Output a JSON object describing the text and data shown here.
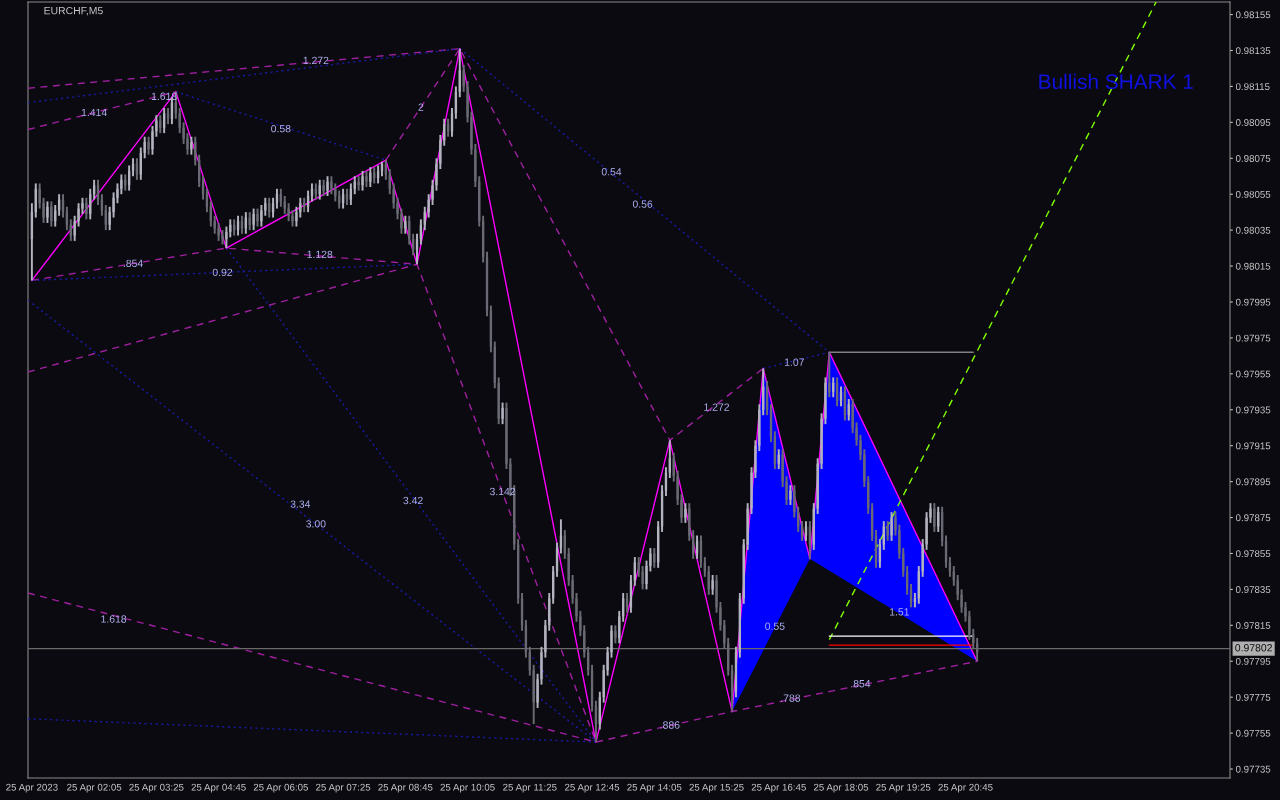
{
  "chart_data": {
    "type": "candlestick",
    "title": "EURCHF,M5",
    "x": [
      "2023-04-25T00:45",
      "2023-04-25T00:50",
      "2023-04-25T00:55",
      "2023-04-25T01:00",
      "2023-04-25T01:05",
      "2023-04-25T01:10",
      "2023-04-25T01:15",
      "2023-04-25T01:20",
      "2023-04-25T01:25",
      "2023-04-25T01:30",
      "2023-04-25T01:35",
      "2023-04-25T01:40",
      "2023-04-25T01:45",
      "2023-04-25T01:50",
      "2023-04-25T01:55",
      "2023-04-25T02:00",
      "2023-04-25T02:05",
      "2023-04-25T02:10",
      "2023-04-25T02:15",
      "2023-04-25T02:20",
      "2023-04-25T02:25",
      "2023-04-25T02:30",
      "2023-04-25T02:35",
      "2023-04-25T02:40",
      "2023-04-25T02:45",
      "2023-04-25T02:50",
      "2023-04-25T02:55",
      "2023-04-25T03:00",
      "2023-04-25T03:05",
      "2023-04-25T03:10",
      "2023-04-25T03:15",
      "2023-04-25T03:20",
      "2023-04-25T03:25",
      "2023-04-25T03:30",
      "2023-04-25T03:35",
      "2023-04-25T03:40",
      "2023-04-25T03:45",
      "2023-04-25T03:50",
      "2023-04-25T03:55",
      "2023-04-25T04:00",
      "2023-04-25T04:05",
      "2023-04-25T04:10",
      "2023-04-25T04:15",
      "2023-04-25T04:20",
      "2023-04-25T04:25",
      "2023-04-25T04:30",
      "2023-04-25T04:35",
      "2023-04-25T04:40",
      "2023-04-25T04:45",
      "2023-04-25T04:50",
      "2023-04-25T04:55",
      "2023-04-25T05:00",
      "2023-04-25T05:05",
      "2023-04-25T05:10",
      "2023-04-25T05:15",
      "2023-04-25T05:20",
      "2023-04-25T05:25",
      "2023-04-25T05:30",
      "2023-04-25T05:35",
      "2023-04-25T05:40",
      "2023-04-25T05:45",
      "2023-04-25T05:50",
      "2023-04-25T05:55",
      "2023-04-25T06:00",
      "2023-04-25T06:05",
      "2023-04-25T06:10",
      "2023-04-25T06:15",
      "2023-04-25T06:20",
      "2023-04-25T06:25",
      "2023-04-25T06:30",
      "2023-04-25T06:35",
      "2023-04-25T06:40",
      "2023-04-25T06:45",
      "2023-04-25T06:50",
      "2023-04-25T06:55",
      "2023-04-25T07:00",
      "2023-04-25T07:05",
      "2023-04-25T07:10",
      "2023-04-25T07:15",
      "2023-04-25T07:20",
      "2023-04-25T07:25",
      "2023-04-25T07:30",
      "2023-04-25T07:35",
      "2023-04-25T07:40",
      "2023-04-25T07:45",
      "2023-04-25T07:50",
      "2023-04-25T07:55",
      "2023-04-25T08:00",
      "2023-04-25T08:05",
      "2023-04-25T08:10",
      "2023-04-25T08:15",
      "2023-04-25T08:20",
      "2023-04-25T08:25",
      "2023-04-25T08:30",
      "2023-04-25T08:35",
      "2023-04-25T08:40",
      "2023-04-25T08:45",
      "2023-04-25T08:50",
      "2023-04-25T08:55",
      "2023-04-25T09:00",
      "2023-04-25T09:05",
      "2023-04-25T09:10",
      "2023-04-25T09:15",
      "2023-04-25T09:20",
      "2023-04-25T09:25",
      "2023-04-25T09:30",
      "2023-04-25T09:35",
      "2023-04-25T09:40",
      "2023-04-25T09:45",
      "2023-04-25T09:50",
      "2023-04-25T09:55",
      "2023-04-25T10:00",
      "2023-04-25T10:05",
      "2023-04-25T10:10",
      "2023-04-25T10:15",
      "2023-04-25T10:20",
      "2023-04-25T10:25",
      "2023-04-25T10:30",
      "2023-04-25T10:35",
      "2023-04-25T10:40",
      "2023-04-25T10:45",
      "2023-04-25T10:50",
      "2023-04-25T10:55",
      "2023-04-25T11:00",
      "2023-04-25T11:05",
      "2023-04-25T11:10",
      "2023-04-25T11:15",
      "2023-04-25T11:20",
      "2023-04-25T11:25",
      "2023-04-25T11:30",
      "2023-04-25T11:35",
      "2023-04-25T11:40",
      "2023-04-25T11:45",
      "2023-04-25T11:50",
      "2023-04-25T11:55",
      "2023-04-25T12:00",
      "2023-04-25T12:05",
      "2023-04-25T12:10",
      "2023-04-25T12:15",
      "2023-04-25T12:20",
      "2023-04-25T12:25",
      "2023-04-25T12:30",
      "2023-04-25T12:35",
      "2023-04-25T12:40",
      "2023-04-25T12:45",
      "2023-04-25T12:50",
      "2023-04-25T12:55",
      "2023-04-25T13:00",
      "2023-04-25T13:05",
      "2023-04-25T13:10",
      "2023-04-25T13:15",
      "2023-04-25T13:20",
      "2023-04-25T13:25",
      "2023-04-25T13:30",
      "2023-04-25T13:35",
      "2023-04-25T13:40",
      "2023-04-25T13:45",
      "2023-04-25T13:50",
      "2023-04-25T13:55",
      "2023-04-25T14:00",
      "2023-04-25T14:05",
      "2023-04-25T14:10",
      "2023-04-25T14:15",
      "2023-04-25T14:20",
      "2023-04-25T14:25",
      "2023-04-25T14:30",
      "2023-04-25T14:35",
      "2023-04-25T14:40",
      "2023-04-25T14:45",
      "2023-04-25T14:50",
      "2023-04-25T14:55",
      "2023-04-25T15:00",
      "2023-04-25T15:05",
      "2023-04-25T15:10",
      "2023-04-25T15:15",
      "2023-04-25T15:20",
      "2023-04-25T15:25",
      "2023-04-25T15:30",
      "2023-04-25T15:35",
      "2023-04-25T15:40",
      "2023-04-25T15:45",
      "2023-04-25T15:50",
      "2023-04-25T15:55",
      "2023-04-25T16:00",
      "2023-04-25T16:05",
      "2023-04-25T16:10",
      "2023-04-25T16:15",
      "2023-04-25T16:20",
      "2023-04-25T16:25",
      "2023-04-25T16:30",
      "2023-04-25T16:35",
      "2023-04-25T16:40",
      "2023-04-25T16:45",
      "2023-04-25T16:50",
      "2023-04-25T16:55",
      "2023-04-25T17:00",
      "2023-04-25T17:05",
      "2023-04-25T17:10",
      "2023-04-25T17:15",
      "2023-04-25T17:20",
      "2023-04-25T17:25",
      "2023-04-25T17:30",
      "2023-04-25T17:35",
      "2023-04-25T17:40",
      "2023-04-25T17:45",
      "2023-04-25T17:50",
      "2023-04-25T17:55",
      "2023-04-25T18:00",
      "2023-04-25T18:05",
      "2023-04-25T18:10",
      "2023-04-25T18:15",
      "2023-04-25T18:20",
      "2023-04-25T18:25",
      "2023-04-25T18:30",
      "2023-04-25T18:35",
      "2023-04-25T18:40",
      "2023-04-25T18:45",
      "2023-04-25T18:50",
      "2023-04-25T18:55",
      "2023-04-25T19:00",
      "2023-04-25T19:05",
      "2023-04-25T19:10",
      "2023-04-25T19:15",
      "2023-04-25T19:20",
      "2023-04-25T19:25",
      "2023-04-25T19:30",
      "2023-04-25T19:35",
      "2023-04-25T19:40",
      "2023-04-25T19:45",
      "2023-04-25T19:50",
      "2023-04-25T19:55",
      "2023-04-25T20:00",
      "2023-04-25T20:05",
      "2023-04-25T20:10",
      "2023-04-25T20:15",
      "2023-04-25T20:20",
      "2023-04-25T20:25",
      "2023-04-25T20:30",
      "2023-04-25T20:35",
      "2023-04-25T20:40",
      "2023-04-25T20:45",
      "2023-04-25T20:50",
      "2023-04-25T20:55",
      "2023-04-25T21:00"
    ],
    "ohlc": [
      [
        0.9803,
        0.9805,
        0.98007,
        0.98045
      ],
      [
        0.98045,
        0.98061,
        0.98042,
        0.98058
      ],
      [
        0.98058,
        0.98061,
        0.98047,
        0.9805
      ],
      [
        0.9805,
        0.98053,
        0.98039,
        0.98042
      ],
      [
        0.98042,
        0.98051,
        0.98039,
        0.98048
      ],
      [
        0.98048,
        0.98051,
        0.98037,
        0.9804
      ],
      [
        0.9804,
        0.98049,
        0.98037,
        0.98046
      ],
      [
        0.98046,
        0.98055,
        0.98043,
        0.98052
      ],
      [
        0.98052,
        0.98055,
        0.98042,
        0.98045
      ],
      [
        0.98045,
        0.98048,
        0.98035,
        0.98038
      ],
      [
        0.98038,
        0.98041,
        0.98029,
        0.98032
      ],
      [
        0.98032,
        0.98043,
        0.98029,
        0.9804
      ],
      [
        0.9804,
        0.9805,
        0.98037,
        0.98047
      ],
      [
        0.98047,
        0.98053,
        0.98044,
        0.9805
      ],
      [
        0.9805,
        0.98053,
        0.98041,
        0.98044
      ],
      [
        0.98044,
        0.98058,
        0.98041,
        0.98055
      ],
      [
        0.98055,
        0.98063,
        0.98052,
        0.9806
      ],
      [
        0.9806,
        0.98063,
        0.98049,
        0.98052
      ],
      [
        0.98052,
        0.98055,
        0.98043,
        0.98046
      ],
      [
        0.98046,
        0.98049,
        0.98035,
        0.98038
      ],
      [
        0.98038,
        0.98048,
        0.98035,
        0.98045
      ],
      [
        0.98045,
        0.98056,
        0.98042,
        0.98053
      ],
      [
        0.98053,
        0.98061,
        0.9805,
        0.98058
      ],
      [
        0.98058,
        0.98066,
        0.98055,
        0.98063
      ],
      [
        0.98063,
        0.98066,
        0.98057,
        0.9806
      ],
      [
        0.9806,
        0.98071,
        0.98057,
        0.98068
      ],
      [
        0.98068,
        0.98075,
        0.98065,
        0.98072
      ],
      [
        0.98072,
        0.98075,
        0.98063,
        0.98066
      ],
      [
        0.98066,
        0.98081,
        0.98063,
        0.98078
      ],
      [
        0.98078,
        0.98087,
        0.98075,
        0.98084
      ],
      [
        0.98084,
        0.98087,
        0.98077,
        0.9808
      ],
      [
        0.9808,
        0.98093,
        0.98077,
        0.9809
      ],
      [
        0.9809,
        0.98099,
        0.98087,
        0.98096
      ],
      [
        0.98096,
        0.98099,
        0.98089,
        0.98092
      ],
      [
        0.98092,
        0.98103,
        0.98089,
        0.981
      ],
      [
        0.981,
        0.98103,
        0.98094,
        0.98097
      ],
      [
        0.98097,
        0.98109,
        0.98094,
        0.98106
      ],
      [
        0.98106,
        0.98112,
        0.98097,
        0.981
      ],
      [
        0.981,
        0.98103,
        0.98089,
        0.98092
      ],
      [
        0.98092,
        0.98095,
        0.98083,
        0.98086
      ],
      [
        0.98086,
        0.98089,
        0.98077,
        0.9808
      ],
      [
        0.9808,
        0.98087,
        0.98077,
        0.98084
      ],
      [
        0.98084,
        0.98087,
        0.98071,
        0.98074
      ],
      [
        0.98074,
        0.98077,
        0.98059,
        0.98062
      ],
      [
        0.98062,
        0.98065,
        0.98052,
        0.98055
      ],
      [
        0.98055,
        0.98058,
        0.98045,
        0.98048
      ],
      [
        0.98048,
        0.98051,
        0.98037,
        0.9804
      ],
      [
        0.9804,
        0.98043,
        0.98033,
        0.98036
      ],
      [
        0.98036,
        0.98039,
        0.98029,
        0.98032
      ],
      [
        0.98032,
        0.98035,
        0.98027,
        0.9803
      ],
      [
        0.9803,
        0.98037,
        0.98025,
        0.98034
      ],
      [
        0.98034,
        0.98041,
        0.98031,
        0.98038
      ],
      [
        0.98038,
        0.98041,
        0.98032,
        0.98035
      ],
      [
        0.98035,
        0.98043,
        0.98032,
        0.9804
      ],
      [
        0.9804,
        0.98043,
        0.98033,
        0.98036
      ],
      [
        0.98036,
        0.98045,
        0.98033,
        0.98042
      ],
      [
        0.98042,
        0.98045,
        0.98035,
        0.98038
      ],
      [
        0.98038,
        0.98047,
        0.98035,
        0.98044
      ],
      [
        0.98044,
        0.98047,
        0.98037,
        0.9804
      ],
      [
        0.9804,
        0.98049,
        0.98037,
        0.98046
      ],
      [
        0.98046,
        0.98053,
        0.98043,
        0.9805
      ],
      [
        0.9805,
        0.98053,
        0.98042,
        0.98045
      ],
      [
        0.98045,
        0.98053,
        0.98042,
        0.9805
      ],
      [
        0.9805,
        0.98058,
        0.98047,
        0.98055
      ],
      [
        0.98055,
        0.98058,
        0.98048,
        0.98051
      ],
      [
        0.98051,
        0.98054,
        0.98044,
        0.98047
      ],
      [
        0.98047,
        0.9805,
        0.9804,
        0.98043
      ],
      [
        0.98043,
        0.98046,
        0.98037,
        0.9804
      ],
      [
        0.9804,
        0.98048,
        0.98037,
        0.98045
      ],
      [
        0.98045,
        0.98053,
        0.98042,
        0.9805
      ],
      [
        0.9805,
        0.98053,
        0.98045,
        0.98048
      ],
      [
        0.98048,
        0.98057,
        0.98045,
        0.98054
      ],
      [
        0.98054,
        0.98061,
        0.98051,
        0.98058
      ],
      [
        0.98058,
        0.98061,
        0.98052,
        0.98055
      ],
      [
        0.98055,
        0.98063,
        0.98052,
        0.9806
      ],
      [
        0.9806,
        0.98063,
        0.98054,
        0.98057
      ],
      [
        0.98057,
        0.98065,
        0.98054,
        0.98062
      ],
      [
        0.98062,
        0.98065,
        0.98055,
        0.98058
      ],
      [
        0.98058,
        0.98061,
        0.98051,
        0.98054
      ],
      [
        0.98054,
        0.98057,
        0.98047,
        0.9805
      ],
      [
        0.9805,
        0.98058,
        0.98047,
        0.98055
      ],
      [
        0.98055,
        0.98058,
        0.98049,
        0.98052
      ],
      [
        0.98052,
        0.98061,
        0.98049,
        0.98058
      ],
      [
        0.98058,
        0.98065,
        0.98055,
        0.98062
      ],
      [
        0.98062,
        0.98065,
        0.98057,
        0.9806
      ],
      [
        0.9806,
        0.98068,
        0.98057,
        0.98065
      ],
      [
        0.98065,
        0.98068,
        0.98059,
        0.98062
      ],
      [
        0.98062,
        0.9807,
        0.98059,
        0.98067
      ],
      [
        0.98067,
        0.9807,
        0.98061,
        0.98064
      ],
      [
        0.98064,
        0.98071,
        0.98061,
        0.98068
      ],
      [
        0.98068,
        0.98073,
        0.98065,
        0.98072
      ],
      [
        0.98072,
        0.98074,
        0.98063,
        0.98066
      ],
      [
        0.98066,
        0.98069,
        0.98055,
        0.98058
      ],
      [
        0.98058,
        0.98061,
        0.98047,
        0.9805
      ],
      [
        0.9805,
        0.98053,
        0.98041,
        0.98044
      ],
      [
        0.98044,
        0.98047,
        0.98033,
        0.98036
      ],
      [
        0.98036,
        0.98043,
        0.98033,
        0.9804
      ],
      [
        0.9804,
        0.98043,
        0.98027,
        0.9803
      ],
      [
        0.9803,
        0.98033,
        0.98021,
        0.98024
      ],
      [
        0.98024,
        0.98033,
        0.98016,
        0.9803
      ],
      [
        0.9803,
        0.98041,
        0.98027,
        0.98038
      ],
      [
        0.98038,
        0.98048,
        0.98035,
        0.98045
      ],
      [
        0.98045,
        0.98055,
        0.98042,
        0.98052
      ],
      [
        0.98052,
        0.98063,
        0.98049,
        0.9806
      ],
      [
        0.9806,
        0.98075,
        0.98057,
        0.98072
      ],
      [
        0.98072,
        0.98088,
        0.98069,
        0.98085
      ],
      [
        0.98085,
        0.98097,
        0.98082,
        0.98094
      ],
      [
        0.98094,
        0.98097,
        0.98087,
        0.9809
      ],
      [
        0.9809,
        0.98103,
        0.98087,
        0.981
      ],
      [
        0.981,
        0.98115,
        0.98097,
        0.98112
      ],
      [
        0.98112,
        0.98136,
        0.98109,
        0.98124
      ],
      [
        0.98124,
        0.98127,
        0.98112,
        0.98115
      ],
      [
        0.98115,
        0.98118,
        0.98095,
        0.98098
      ],
      [
        0.98098,
        0.98101,
        0.98077,
        0.9808
      ],
      [
        0.9808,
        0.98083,
        0.98059,
        0.98062
      ],
      [
        0.98062,
        0.98065,
        0.98037,
        0.9804
      ],
      [
        0.9804,
        0.98043,
        0.98017,
        0.9802
      ],
      [
        0.9802,
        0.98023,
        0.97987,
        0.9799
      ],
      [
        0.9799,
        0.97993,
        0.97967,
        0.9797
      ],
      [
        0.9797,
        0.97973,
        0.97947,
        0.9795
      ],
      [
        0.9795,
        0.97953,
        0.97927,
        0.9793
      ],
      [
        0.9793,
        0.97939,
        0.97927,
        0.97936
      ],
      [
        0.97936,
        0.97939,
        0.97902,
        0.97905
      ],
      [
        0.97905,
        0.97908,
        0.97887,
        0.9789
      ],
      [
        0.9789,
        0.97893,
        0.97857,
        0.9786
      ],
      [
        0.9786,
        0.97863,
        0.97827,
        0.9783
      ],
      [
        0.9783,
        0.97833,
        0.97812,
        0.97815
      ],
      [
        0.97815,
        0.97818,
        0.97797,
        0.978
      ],
      [
        0.978,
        0.97803,
        0.97787,
        0.9779
      ],
      [
        0.9779,
        0.97793,
        0.9776,
        0.97772
      ],
      [
        0.97772,
        0.97788,
        0.97769,
        0.97785
      ],
      [
        0.97785,
        0.97803,
        0.97782,
        0.978
      ],
      [
        0.978,
        0.97818,
        0.97797,
        0.97815
      ],
      [
        0.97815,
        0.97833,
        0.97812,
        0.9783
      ],
      [
        0.9783,
        0.97848,
        0.97827,
        0.97845
      ],
      [
        0.97845,
        0.97861,
        0.97842,
        0.97858
      ],
      [
        0.97858,
        0.97874,
        0.97855,
        0.97865
      ],
      [
        0.97865,
        0.97868,
        0.97852,
        0.97855
      ],
      [
        0.97855,
        0.97858,
        0.97837,
        0.9784
      ],
      [
        0.9784,
        0.97843,
        0.97827,
        0.9783
      ],
      [
        0.9783,
        0.97833,
        0.97817,
        0.9782
      ],
      [
        0.9782,
        0.97823,
        0.97809,
        0.97812
      ],
      [
        0.97812,
        0.97815,
        0.97797,
        0.978
      ],
      [
        0.978,
        0.97803,
        0.97787,
        0.9779
      ],
      [
        0.9779,
        0.97793,
        0.97767,
        0.9777
      ],
      [
        0.9777,
        0.97773,
        0.9775,
        0.9776
      ],
      [
        0.9776,
        0.97778,
        0.97757,
        0.97775
      ],
      [
        0.97775,
        0.97793,
        0.97772,
        0.9779
      ],
      [
        0.9779,
        0.97803,
        0.97787,
        0.978
      ],
      [
        0.978,
        0.97815,
        0.97797,
        0.97812
      ],
      [
        0.97812,
        0.97815,
        0.97805,
        0.97808
      ],
      [
        0.97808,
        0.97823,
        0.97805,
        0.9782
      ],
      [
        0.9782,
        0.97833,
        0.97817,
        0.9783
      ],
      [
        0.9783,
        0.97833,
        0.97822,
        0.97825
      ],
      [
        0.97825,
        0.97843,
        0.97822,
        0.9784
      ],
      [
        0.9784,
        0.97853,
        0.97837,
        0.9785
      ],
      [
        0.9785,
        0.97853,
        0.97842,
        0.97845
      ],
      [
        0.97845,
        0.97848,
        0.97835,
        0.97838
      ],
      [
        0.97838,
        0.97851,
        0.97835,
        0.97848
      ],
      [
        0.97848,
        0.97858,
        0.97845,
        0.97855
      ],
      [
        0.97855,
        0.97858,
        0.97847,
        0.9785
      ],
      [
        0.9785,
        0.97873,
        0.97847,
        0.9787
      ],
      [
        0.9787,
        0.97893,
        0.97867,
        0.9789
      ],
      [
        0.9789,
        0.97903,
        0.97887,
        0.979
      ],
      [
        0.979,
        0.97918,
        0.97897,
        0.97908
      ],
      [
        0.97908,
        0.97911,
        0.97895,
        0.97898
      ],
      [
        0.97898,
        0.97901,
        0.97882,
        0.97885
      ],
      [
        0.97885,
        0.97888,
        0.97872,
        0.97875
      ],
      [
        0.97875,
        0.97883,
        0.97872,
        0.9788
      ],
      [
        0.9788,
        0.97883,
        0.97862,
        0.97865
      ],
      [
        0.97865,
        0.97868,
        0.97852,
        0.97855
      ],
      [
        0.97855,
        0.97865,
        0.97852,
        0.97862
      ],
      [
        0.97862,
        0.97865,
        0.97847,
        0.9785
      ],
      [
        0.9785,
        0.97853,
        0.97842,
        0.97845
      ],
      [
        0.97845,
        0.97848,
        0.97832,
        0.97835
      ],
      [
        0.97835,
        0.97843,
        0.97832,
        0.9784
      ],
      [
        0.9784,
        0.97843,
        0.97822,
        0.97825
      ],
      [
        0.97825,
        0.97828,
        0.97812,
        0.97815
      ],
      [
        0.97815,
        0.97818,
        0.97802,
        0.97805
      ],
      [
        0.97805,
        0.97808,
        0.97787,
        0.9779
      ],
      [
        0.9779,
        0.97793,
        0.97767,
        0.97778
      ],
      [
        0.97778,
        0.97803,
        0.97775,
        0.978
      ],
      [
        0.978,
        0.97833,
        0.97797,
        0.9783
      ],
      [
        0.9783,
        0.97863,
        0.97827,
        0.9786
      ],
      [
        0.9786,
        0.97883,
        0.97857,
        0.9788
      ],
      [
        0.9788,
        0.97903,
        0.97877,
        0.979
      ],
      [
        0.979,
        0.97918,
        0.97897,
        0.97915
      ],
      [
        0.97915,
        0.97938,
        0.97912,
        0.97935
      ],
      [
        0.97935,
        0.97958,
        0.97932,
        0.97948
      ],
      [
        0.97948,
        0.97951,
        0.97932,
        0.97935
      ],
      [
        0.97935,
        0.97938,
        0.97917,
        0.9792
      ],
      [
        0.9792,
        0.97923,
        0.97902,
        0.97905
      ],
      [
        0.97905,
        0.97913,
        0.97902,
        0.9791
      ],
      [
        0.9791,
        0.97913,
        0.97892,
        0.97895
      ],
      [
        0.97895,
        0.97898,
        0.97882,
        0.97885
      ],
      [
        0.97885,
        0.97893,
        0.97882,
        0.9789
      ],
      [
        0.9789,
        0.97893,
        0.97875,
        0.97878
      ],
      [
        0.97878,
        0.97881,
        0.97867,
        0.9787
      ],
      [
        0.9787,
        0.97873,
        0.97862,
        0.97865
      ],
      [
        0.97865,
        0.97873,
        0.97862,
        0.9787
      ],
      [
        0.9787,
        0.97873,
        0.97852,
        0.9786
      ],
      [
        0.9786,
        0.97883,
        0.97857,
        0.9788
      ],
      [
        0.9788,
        0.97908,
        0.97877,
        0.97905
      ],
      [
        0.97905,
        0.97933,
        0.97902,
        0.9793
      ],
      [
        0.9793,
        0.97953,
        0.97927,
        0.9795
      ],
      [
        0.9795,
        0.97967,
        0.97942,
        0.97945
      ],
      [
        0.97945,
        0.97953,
        0.97942,
        0.9795
      ],
      [
        0.9795,
        0.97953,
        0.97937,
        0.9794
      ],
      [
        0.9794,
        0.97948,
        0.97937,
        0.97945
      ],
      [
        0.97945,
        0.97948,
        0.97929,
        0.97932
      ],
      [
        0.97932,
        0.97941,
        0.97929,
        0.97938
      ],
      [
        0.97938,
        0.97941,
        0.97922,
        0.97925
      ],
      [
        0.97925,
        0.97928,
        0.97915,
        0.97918
      ],
      [
        0.97918,
        0.97921,
        0.97907,
        0.9791
      ],
      [
        0.9791,
        0.97913,
        0.97892,
        0.97895
      ],
      [
        0.97895,
        0.97898,
        0.97877,
        0.9788
      ],
      [
        0.9788,
        0.97883,
        0.97862,
        0.97865
      ],
      [
        0.97865,
        0.97868,
        0.97847,
        0.9785
      ],
      [
        0.9785,
        0.97863,
        0.97847,
        0.9786
      ],
      [
        0.9786,
        0.97873,
        0.97857,
        0.9787
      ],
      [
        0.9787,
        0.97873,
        0.97862,
        0.97865
      ],
      [
        0.97865,
        0.97878,
        0.97862,
        0.97875
      ],
      [
        0.97875,
        0.97878,
        0.97865,
        0.97868
      ],
      [
        0.97868,
        0.97871,
        0.97852,
        0.97855
      ],
      [
        0.97855,
        0.97858,
        0.97842,
        0.97845
      ],
      [
        0.97845,
        0.97848,
        0.97832,
        0.97835
      ],
      [
        0.97835,
        0.97838,
        0.97825,
        0.97828
      ],
      [
        0.97828,
        0.97833,
        0.97825,
        0.9783
      ],
      [
        0.9783,
        0.97848,
        0.97827,
        0.97845
      ],
      [
        0.97845,
        0.97863,
        0.97842,
        0.9786
      ],
      [
        0.9786,
        0.97878,
        0.97857,
        0.97875
      ],
      [
        0.97875,
        0.97883,
        0.97872,
        0.9788
      ],
      [
        0.9788,
        0.97883,
        0.97867,
        0.9787
      ],
      [
        0.9787,
        0.97881,
        0.97867,
        0.97878
      ],
      [
        0.97878,
        0.97881,
        0.97859,
        0.97862
      ],
      [
        0.97862,
        0.97865,
        0.97847,
        0.9785
      ],
      [
        0.9785,
        0.97853,
        0.97842,
        0.97845
      ],
      [
        0.97845,
        0.97848,
        0.97837,
        0.9784
      ],
      [
        0.9784,
        0.97843,
        0.97829,
        0.97832
      ],
      [
        0.97832,
        0.97835,
        0.97822,
        0.97825
      ],
      [
        0.97825,
        0.97828,
        0.97817,
        0.9782
      ],
      [
        0.9782,
        0.97823,
        0.97807,
        0.9781
      ],
      [
        0.9781,
        0.97813,
        0.97802,
        0.97805
      ],
      [
        0.97805,
        0.97808,
        0.97795,
        0.978
      ]
    ],
    "series": [
      {
        "type": "area",
        "color": "#0000ff",
        "x": [
          "2023-04-25T15:45",
          "2023-04-25T16:25",
          "2023-04-25T17:25"
        ],
        "values": [
          0.97767,
          0.97958,
          0.97852
        ]
      },
      {
        "type": "area",
        "color": "#0000ff",
        "x": [
          "2023-04-25T17:25",
          "2023-04-25T17:50",
          "2023-04-25T21:00"
        ],
        "values": [
          0.97852,
          0.97967,
          0.97795
        ]
      },
      {
        "type": "line",
        "color": "#a020a0",
        "line_style": "dashed",
        "x": [
          "2023-04-25T00:40",
          "2023-04-25T09:55"
        ],
        "values": [
          0.98114,
          0.98136
        ]
      },
      {
        "type": "line",
        "color": "#1a1aa8",
        "line_style": "dotted",
        "x": [
          "2023-04-25T00:40",
          "2023-04-25T09:55"
        ],
        "values": [
          0.98106,
          0.98136
        ]
      },
      {
        "type": "line",
        "color": "#a020a0",
        "line_style": "dashed",
        "x": [
          "2023-04-25T00:40",
          "2023-04-25T03:50"
        ],
        "values": [
          0.98091,
          0.98112
        ]
      },
      {
        "type": "line",
        "color": "#a020a0",
        "line_style": "dashed",
        "x": [
          "2023-04-25T00:45",
          "2023-04-25T04:55",
          "2023-04-25T09:00",
          "2023-04-25T12:50"
        ],
        "values": [
          0.98007,
          0.98025,
          0.98016,
          0.9775
        ]
      },
      {
        "type": "line",
        "color": "#1a1aa8",
        "line_style": "dotted",
        "x": [
          "2023-04-25T00:45",
          "2023-04-25T09:00"
        ],
        "values": [
          0.98007,
          0.98016
        ]
      },
      {
        "type": "line",
        "color": "#a020a0",
        "line_style": "dashed",
        "x": [
          "2023-04-25T00:40",
          "2023-04-25T09:00"
        ],
        "values": [
          0.97956,
          0.98016
        ]
      },
      {
        "type": "line",
        "color": "#1a1aa8",
        "line_style": "dotted",
        "x": [
          "2023-04-25T03:50",
          "2023-04-25T08:20"
        ],
        "values": [
          0.98112,
          0.98074
        ]
      },
      {
        "type": "line",
        "color": "#a020a0",
        "line_style": "dashed",
        "x": [
          "2023-04-25T08:20",
          "2023-04-25T09:55",
          "2023-04-25T14:25",
          "2023-04-25T16:25"
        ],
        "values": [
          0.98074,
          0.98136,
          0.97918,
          0.97958
        ]
      },
      {
        "type": "line",
        "color": "#1a1aa8",
        "line_style": "dotted",
        "x": [
          "2023-04-25T09:55",
          "2023-04-25T17:50"
        ],
        "values": [
          0.98136,
          0.97967
        ]
      },
      {
        "type": "line",
        "color": "#1a1aa8",
        "line_style": "dotted",
        "x": [
          "2023-04-25T16:25",
          "2023-04-25T17:50"
        ],
        "values": [
          0.97958,
          0.97967
        ]
      },
      {
        "type": "line",
        "color": "#a020a0",
        "line_style": "dashed",
        "x": [
          "2023-04-25T00:40",
          "2023-04-25T12:50",
          "2023-04-25T15:45",
          "2023-04-25T21:00"
        ],
        "values": [
          0.97833,
          0.9775,
          0.97767,
          0.97795
        ]
      },
      {
        "type": "line",
        "color": "#1a1aa8",
        "line_style": "dotted",
        "x": [
          "2023-04-25T00:40",
          "2023-04-25T12:50"
        ],
        "values": [
          0.97763,
          0.9775
        ]
      },
      {
        "type": "line",
        "color": "#1a1aa8",
        "line_style": "dotted",
        "x": [
          "2023-04-25T00:40",
          "2023-04-25T12:50"
        ],
        "values": [
          0.97996,
          0.9775
        ]
      },
      {
        "type": "line",
        "color": "#1a1aa8",
        "line_style": "dotted",
        "x": [
          "2023-04-25T04:55",
          "2023-04-25T12:50"
        ],
        "values": [
          0.98025,
          0.9775
        ]
      },
      {
        "type": "line",
        "color": "#ff00ff",
        "line_style": "solid",
        "x": [
          "2023-04-25T00:45",
          "2023-04-25T03:50",
          "2023-04-25T04:55",
          "2023-04-25T08:20",
          "2023-04-25T09:00",
          "2023-04-25T09:55",
          "2023-04-25T12:50",
          "2023-04-25T14:25",
          "2023-04-25T15:45",
          "2023-04-25T16:25",
          "2023-04-25T17:25",
          "2023-04-25T17:50",
          "2023-04-25T21:00"
        ],
        "values": [
          0.98007,
          0.98112,
          0.98025,
          0.98074,
          0.98016,
          0.98136,
          0.9775,
          0.97918,
          0.97767,
          0.97958,
          0.97852,
          0.97967,
          0.97795
        ]
      },
      {
        "type": "line",
        "color": "#7fff00",
        "line_style": "dashed",
        "x": [
          "2023-04-25T17:50",
          "2023-04-26T00:50"
        ],
        "values": [
          0.97807,
          0.98162
        ]
      },
      {
        "type": "line",
        "color": "#808080",
        "line_style": "solid",
        "x": [
          "2023-04-25T17:50",
          "2023-04-25T20:55"
        ],
        "values": [
          0.97967,
          0.97967
        ]
      },
      {
        "type": "line",
        "color": "#ffffff",
        "line_style": "solid",
        "x": [
          "2023-04-25T17:50",
          "2023-04-25T20:55"
        ],
        "values": [
          0.97809,
          0.97809
        ]
      },
      {
        "type": "line",
        "color": "#ff0000",
        "line_style": "solid",
        "x": [
          "2023-04-25T17:50",
          "2023-04-25T20:55"
        ],
        "values": [
          0.97804,
          0.97804
        ]
      }
    ],
    "ref_lines": [
      {
        "axis": "y",
        "value": 0.97802,
        "label": "0.97802",
        "color": "#6a6a6a"
      }
    ],
    "annotations": [
      "Bullish SHARK 1",
      {
        "text": "1.618",
        "x": "2023-04-25T03:35",
        "y": 0.98109
      },
      {
        "text": "1.414",
        "x": "2023-04-25T02:05",
        "y": 0.981
      },
      {
        "text": "1.272",
        "x": "2023-04-25T06:50",
        "y": 0.98129
      },
      {
        "text": "0.58",
        "x": "2023-04-25T06:05",
        "y": 0.98091
      },
      {
        "text": "2",
        "x": "2023-04-25T09:05",
        "y": 0.98103
      },
      {
        "text": ".854",
        "x": "2023-04-25T02:55",
        "y": 0.98016
      },
      {
        "text": "0.92",
        "x": "2023-04-25T04:50",
        "y": 0.98011
      },
      {
        "text": "1.128",
        "x": "2023-04-25T06:55",
        "y": 0.98021
      },
      {
        "text": "0.54",
        "x": "2023-04-25T13:10",
        "y": 0.98067
      },
      {
        "text": "0.56",
        "x": "2023-04-25T13:50",
        "y": 0.98049
      },
      {
        "text": "3.34",
        "x": "2023-04-25T06:30",
        "y": 0.97882
      },
      {
        "text": "3.00",
        "x": "2023-04-25T06:50",
        "y": 0.97871
      },
      {
        "text": "3.42",
        "x": "2023-04-25T08:55",
        "y": 0.97884
      },
      {
        "text": "3.142",
        "x": "2023-04-25T10:50",
        "y": 0.97889
      },
      {
        "text": "1.618",
        "x": "2023-04-25T02:30",
        "y": 0.97818
      },
      {
        "text": ".886",
        "x": "2023-04-25T14:25",
        "y": 0.97759
      },
      {
        "text": ".788",
        "x": "2023-04-25T17:00",
        "y": 0.97774
      },
      {
        "text": ".854",
        "x": "2023-04-25T18:30",
        "y": 0.97782
      },
      {
        "text": "1.07",
        "x": "2023-04-25T17:05",
        "y": 0.97961
      },
      {
        "text": "1.272",
        "x": "2023-04-25T15:25",
        "y": 0.97936
      },
      {
        "text": "0.55",
        "x": "2023-04-25T16:40",
        "y": 0.97814
      },
      {
        "text": "1.51",
        "x": "2023-04-25T19:20",
        "y": 0.97822
      }
    ],
    "xlim": [
      "2023-04-25T00:40",
      "2023-04-26T02:25"
    ],
    "xticks": [
      {
        "value": "2023-04-25T00:45",
        "label": "25 Apr 2023"
      },
      {
        "value": "2023-04-25T02:05",
        "label": "25 Apr 02:05"
      },
      {
        "value": "2023-04-25T03:25",
        "label": "25 Apr 03:25"
      },
      {
        "value": "2023-04-25T04:45",
        "label": "25 Apr 04:45"
      },
      {
        "value": "2023-04-25T06:05",
        "label": "25 Apr 06:05"
      },
      {
        "value": "2023-04-25T07:25",
        "label": "25 Apr 07:25"
      },
      {
        "value": "2023-04-25T08:45",
        "label": "25 Apr 08:45"
      },
      {
        "value": "2023-04-25T10:05",
        "label": "25 Apr 10:05"
      },
      {
        "value": "2023-04-25T11:25",
        "label": "25 Apr 11:25"
      },
      {
        "value": "2023-04-25T12:45",
        "label": "25 Apr 12:45"
      },
      {
        "value": "2023-04-25T14:05",
        "label": "25 Apr 14:05"
      },
      {
        "value": "2023-04-25T15:25",
        "label": "25 Apr 15:25"
      },
      {
        "value": "2023-04-25T16:45",
        "label": "25 Apr 16:45"
      },
      {
        "value": "2023-04-25T18:05",
        "label": "25 Apr 18:05"
      },
      {
        "value": "2023-04-25T19:25",
        "label": "25 Apr 19:25"
      },
      {
        "value": "2023-04-25T20:45",
        "label": "25 Apr 20:45"
      }
    ],
    "ylim": [
      0.9773,
      0.98162
    ],
    "yticks": [
      0.97735,
      0.97755,
      0.97775,
      0.97795,
      0.97815,
      0.97835,
      0.97855,
      0.97875,
      0.97895,
      0.97915,
      0.97935,
      0.97955,
      0.97975,
      0.97995,
      0.98015,
      0.98035,
      0.98055,
      0.98075,
      0.98095,
      0.98115,
      0.98135,
      0.98155
    ]
  }
}
